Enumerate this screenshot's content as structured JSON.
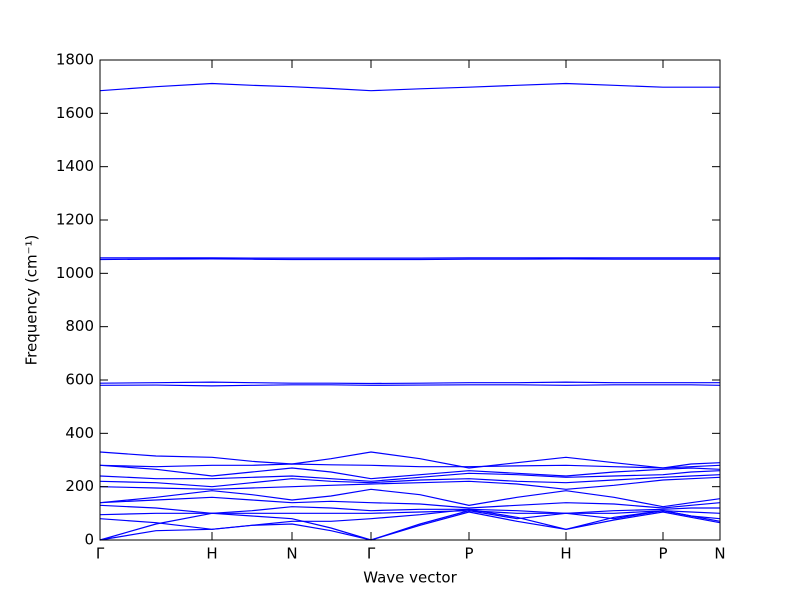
{
  "chart_data": {
    "type": "line",
    "xlabel": "Wave vector",
    "ylabel": "Frequency (cm⁻¹)",
    "color": "#0000ff",
    "x": [
      0,
      56,
      112,
      152,
      192,
      231,
      271,
      320,
      369,
      417,
      466,
      514,
      563,
      591,
      620
    ],
    "xlim": [
      0,
      620
    ],
    "xticks": [
      {
        "value": 0,
        "label": "Γ"
      },
      {
        "value": 112,
        "label": "H"
      },
      {
        "value": 192,
        "label": "N"
      },
      {
        "value": 271,
        "label": "Γ"
      },
      {
        "value": 369,
        "label": "P"
      },
      {
        "value": 466,
        "label": "H"
      },
      {
        "value": 563,
        "label": "P"
      },
      {
        "value": 620,
        "label": "N"
      }
    ],
    "ylim": [
      0,
      1800
    ],
    "yticks": [
      0,
      200,
      400,
      600,
      800,
      1000,
      1200,
      1400,
      1600,
      1800
    ],
    "series": [
      {
        "values": [
          1685,
          1700,
          1712,
          1705,
          1700,
          1693,
          1685,
          1692,
          1698,
          1705,
          1712,
          1705,
          1698,
          1698,
          1698
        ]
      },
      {
        "values": [
          1058,
          1058,
          1058,
          1057,
          1057,
          1057,
          1057,
          1057,
          1058,
          1058,
          1058,
          1058,
          1058,
          1058,
          1058
        ]
      },
      {
        "values": [
          1052,
          1053,
          1054,
          1053,
          1052,
          1052,
          1052,
          1052,
          1053,
          1053,
          1054,
          1053,
          1053,
          1053,
          1053
        ]
      },
      {
        "values": [
          588,
          590,
          592,
          590,
          588,
          588,
          587,
          588,
          590,
          590,
          592,
          590,
          590,
          590,
          590
        ]
      },
      {
        "values": [
          580,
          581,
          578,
          580,
          582,
          582,
          580,
          581,
          582,
          582,
          580,
          582,
          582,
          582,
          580
        ]
      },
      {
        "values": [
          330,
          315,
          310,
          295,
          285,
          305,
          330,
          305,
          270,
          290,
          310,
          290,
          270,
          285,
          290
        ]
      },
      {
        "values": [
          280,
          275,
          280,
          280,
          285,
          282,
          280,
          275,
          275,
          278,
          280,
          275,
          270,
          275,
          280
        ]
      },
      {
        "values": [
          280,
          265,
          240,
          255,
          270,
          255,
          230,
          245,
          260,
          250,
          240,
          255,
          265,
          270,
          265
        ]
      },
      {
        "values": [
          240,
          230,
          230,
          235,
          240,
          230,
          220,
          235,
          250,
          245,
          235,
          240,
          245,
          255,
          260
        ]
      },
      {
        "values": [
          220,
          215,
          200,
          215,
          230,
          220,
          215,
          225,
          230,
          220,
          215,
          225,
          235,
          240,
          245
        ]
      },
      {
        "values": [
          200,
          195,
          190,
          195,
          200,
          205,
          210,
          215,
          220,
          210,
          190,
          205,
          225,
          230,
          235
        ]
      },
      {
        "values": [
          140,
          160,
          185,
          170,
          150,
          165,
          190,
          170,
          130,
          160,
          185,
          160,
          125,
          140,
          155
        ]
      },
      {
        "values": [
          140,
          150,
          160,
          150,
          140,
          145,
          140,
          135,
          120,
          130,
          140,
          135,
          120,
          130,
          140
        ]
      },
      {
        "values": [
          130,
          120,
          100,
          110,
          125,
          120,
          110,
          115,
          115,
          110,
          100,
          110,
          115,
          120,
          120
        ]
      },
      {
        "values": [
          95,
          100,
          100,
          100,
          100,
          100,
          100,
          105,
          110,
          100,
          100,
          100,
          110,
          105,
          100
        ]
      },
      {
        "values": [
          80,
          65,
          40,
          55,
          70,
          70,
          80,
          95,
          115,
          85,
          40,
          85,
          110,
          90,
          70
        ]
      },
      {
        "values": [
          0,
          60,
          100,
          90,
          80,
          45,
          0,
          60,
          110,
          80,
          100,
          80,
          110,
          90,
          80
        ]
      },
      {
        "values": [
          0,
          35,
          40,
          55,
          60,
          35,
          0,
          55,
          105,
          70,
          40,
          75,
          105,
          85,
          65
        ]
      }
    ]
  }
}
